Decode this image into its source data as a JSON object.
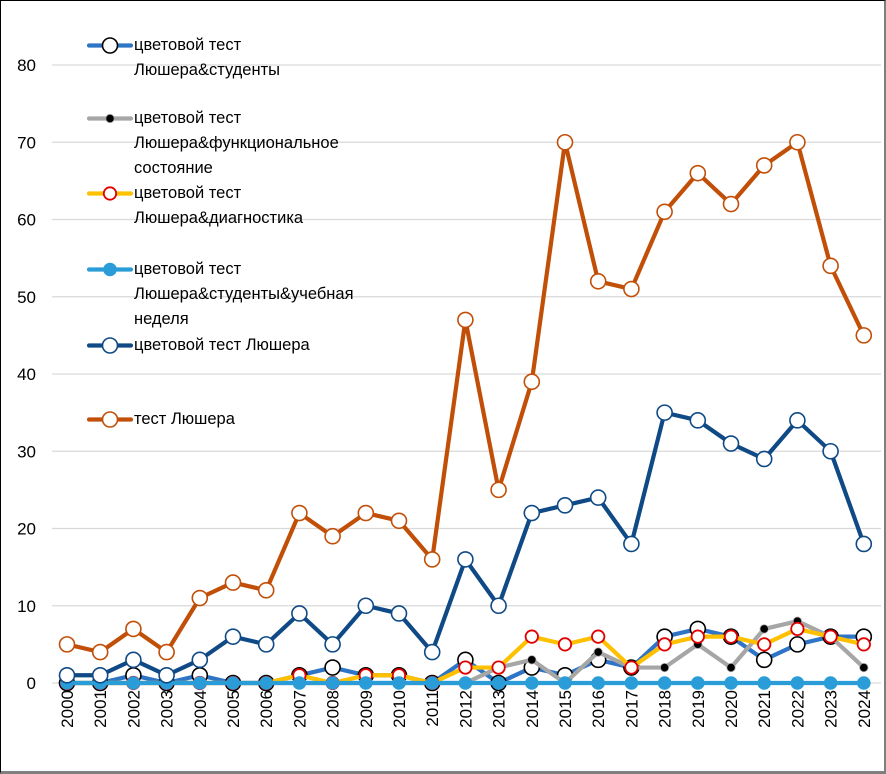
{
  "chart_data": {
    "type": "line",
    "title": "",
    "xlabel": "",
    "ylabel": "",
    "x": [
      "2000",
      "2001",
      "2002",
      "2003",
      "2004",
      "2005",
      "2006",
      "2007",
      "2008",
      "2009",
      "2010",
      "2011",
      "2012",
      "2013",
      "2014",
      "2015",
      "2016",
      "2017",
      "2018",
      "2019",
      "2020",
      "2021",
      "2022",
      "2023",
      "2024"
    ],
    "ylim": [
      0,
      80
    ],
    "yticks": [
      0,
      10,
      20,
      30,
      40,
      50,
      60,
      70,
      80
    ],
    "grid": true,
    "legend_position": "top-left",
    "series": [
      {
        "name": "цветовой тест Люшера&студенты",
        "color": "#2e75c6",
        "marker": "open-circle",
        "marker_stroke": "#000000",
        "marker_fill": "#ffffff",
        "values": [
          0,
          0,
          1,
          0,
          1,
          0,
          0,
          1,
          2,
          1,
          1,
          0,
          3,
          0,
          2,
          1,
          3,
          2,
          6,
          7,
          6,
          3,
          5,
          6,
          6
        ]
      },
      {
        "name": "цветовой тест Люшера&функциональное состояние",
        "color": "#a6a6a6",
        "marker": "dot",
        "marker_stroke": "#a6a6a6",
        "marker_fill": "#000000",
        "values": [
          0,
          0,
          0,
          0,
          0,
          0,
          0,
          0,
          0,
          0,
          0,
          0,
          0,
          2,
          3,
          0,
          4,
          2,
          2,
          5,
          2,
          7,
          8,
          6,
          2
        ]
      },
      {
        "name": "цветовой тест Люшера&диагностика",
        "color": "#ffc000",
        "marker": "open-circle-small",
        "marker_stroke": "#e00000",
        "marker_fill": "#ffffff",
        "values": [
          0,
          0,
          0,
          0,
          0,
          0,
          0,
          1,
          0,
          1,
          1,
          0,
          2,
          2,
          6,
          5,
          6,
          2,
          5,
          6,
          6,
          5,
          7,
          6,
          5
        ]
      },
      {
        "name": "цветовой тест Люшера&студенты&учебная неделя",
        "color": "#2a9dd8",
        "marker": "filled-circle",
        "marker_stroke": "#2a9dd8",
        "marker_fill": "#2a9dd8",
        "values": [
          0,
          0,
          0,
          0,
          0,
          0,
          0,
          0,
          0,
          0,
          0,
          0,
          0,
          0,
          0,
          0,
          0,
          0,
          0,
          0,
          0,
          0,
          0,
          0,
          0
        ]
      },
      {
        "name": "цветовой тест Люшера",
        "color": "#0f4a86",
        "marker": "open-circle",
        "marker_stroke": "#0f4a86",
        "marker_fill": "#ffffff",
        "values": [
          1,
          1,
          3,
          1,
          3,
          6,
          5,
          9,
          5,
          10,
          9,
          4,
          16,
          10,
          22,
          23,
          24,
          18,
          35,
          34,
          31,
          29,
          34,
          30,
          18
        ]
      },
      {
        "name": "тест Люшера",
        "color": "#c14f08",
        "marker": "open-circle",
        "marker_stroke": "#c14f08",
        "marker_fill": "#ffffff",
        "values": [
          5,
          4,
          7,
          4,
          11,
          13,
          12,
          22,
          19,
          22,
          21,
          16,
          47,
          25,
          39,
          70,
          52,
          51,
          61,
          66,
          62,
          67,
          70,
          54,
          45
        ]
      }
    ]
  }
}
